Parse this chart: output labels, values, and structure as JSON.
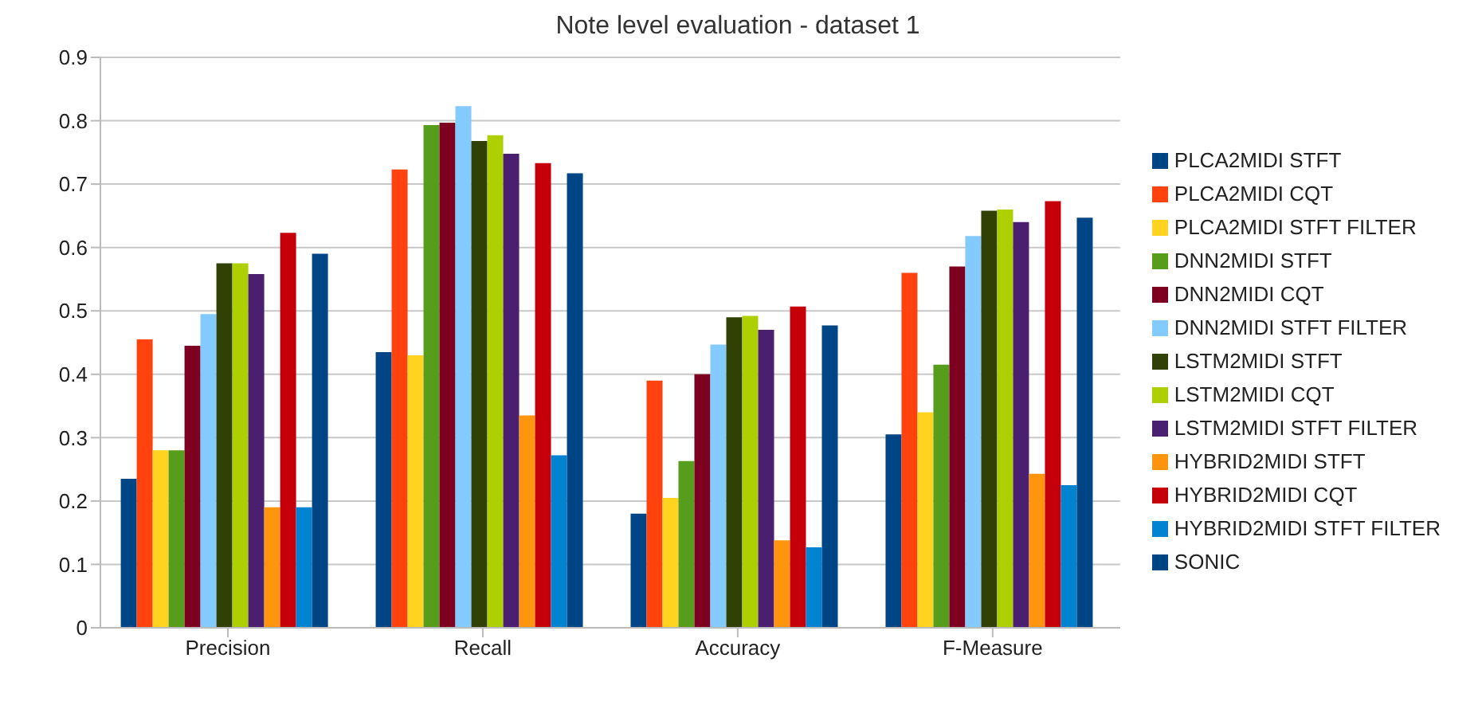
{
  "chart_data": {
    "type": "bar",
    "title": "Note level evaluation - dataset 1",
    "categories": [
      "Precision",
      "Recall",
      "Accuracy",
      "F-Measure"
    ],
    "series": [
      {
        "name": "PLCA2MIDI STFT",
        "color": "#004586",
        "values": [
          0.235,
          0.435,
          0.18,
          0.305
        ]
      },
      {
        "name": "PLCA2MIDI CQT",
        "color": "#ff420e",
        "values": [
          0.455,
          0.723,
          0.39,
          0.56
        ]
      },
      {
        "name": "PLCA2MIDI STFT FILTER",
        "color": "#ffd320",
        "values": [
          0.28,
          0.43,
          0.205,
          0.34
        ]
      },
      {
        "name": "DNN2MIDI STFT",
        "color": "#579d1c",
        "values": [
          0.28,
          0.793,
          0.263,
          0.415
        ]
      },
      {
        "name": "DNN2MIDI CQT",
        "color": "#7e0021",
        "values": [
          0.445,
          0.797,
          0.4,
          0.57
        ]
      },
      {
        "name": "DNN2MIDI STFT FILTER",
        "color": "#83caff",
        "values": [
          0.495,
          0.823,
          0.447,
          0.618
        ]
      },
      {
        "name": "LSTM2MIDI STFT",
        "color": "#314004",
        "values": [
          0.575,
          0.768,
          0.49,
          0.658
        ]
      },
      {
        "name": "LSTM2MIDI CQT",
        "color": "#aecf00",
        "values": [
          0.575,
          0.777,
          0.492,
          0.66
        ]
      },
      {
        "name": "LSTM2MIDI STFT FILTER",
        "color": "#4b1f6f",
        "values": [
          0.558,
          0.748,
          0.47,
          0.64
        ]
      },
      {
        "name": "HYBRID2MIDI STFT",
        "color": "#ff950e",
        "values": [
          0.19,
          0.335,
          0.138,
          0.243
        ]
      },
      {
        "name": "HYBRID2MIDI CQT",
        "color": "#c5000b",
        "values": [
          0.623,
          0.733,
          0.507,
          0.673
        ]
      },
      {
        "name": "HYBRID2MIDI STFT FILTER",
        "color": "#0084d1",
        "values": [
          0.19,
          0.272,
          0.127,
          0.225
        ]
      },
      {
        "name": "SONIC",
        "color": "#004586",
        "values": [
          0.59,
          0.717,
          0.477,
          0.647
        ]
      }
    ],
    "ylim": [
      0,
      0.9
    ],
    "yticks": [
      0,
      0.1,
      0.2,
      0.3,
      0.4,
      0.5,
      0.6,
      0.7,
      0.8,
      0.9
    ],
    "grid": "y",
    "legend": "right"
  }
}
